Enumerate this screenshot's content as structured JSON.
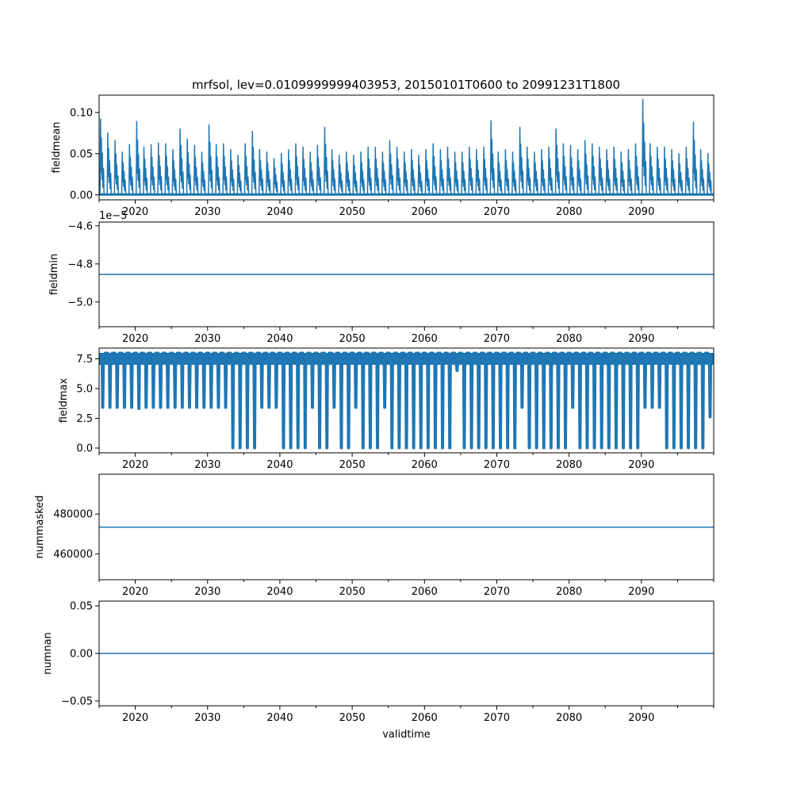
{
  "figure": {
    "title": "mrfsol, lev=0.0109999999403953, 20150101T0600 to 20991231T1800",
    "line_color": "#1f77b4"
  },
  "chart_data": [
    {
      "id": "fieldmean",
      "type": "line",
      "ylabel": "fieldmean",
      "xlabel": "",
      "xlim": [
        2015.0,
        2100.0
      ],
      "ylim": [
        -0.006,
        0.121
      ],
      "yticks": [
        0.0,
        0.05,
        0.1
      ],
      "ytick_labels": [
        "0.00",
        "0.05",
        "0.10"
      ],
      "offset_text": "",
      "xticks": [
        2020,
        2030,
        2040,
        2050,
        2060,
        2070,
        2080,
        2090
      ],
      "xtick_labels": [
        "2020",
        "2030",
        "2040",
        "2050",
        "2060",
        "2070",
        "2080",
        "2090"
      ],
      "series": [
        {
          "name": "fieldmean",
          "kind": "annual_peaks",
          "baseline": 0.0,
          "year_peaks": [
            [
              2015.2,
              0.092
            ],
            [
              2016.2,
              0.075
            ],
            [
              2017.2,
              0.066
            ],
            [
              2018.2,
              0.052
            ],
            [
              2019.2,
              0.061
            ],
            [
              2020.2,
              0.089
            ],
            [
              2021.2,
              0.058
            ],
            [
              2022.2,
              0.061
            ],
            [
              2023.2,
              0.063
            ],
            [
              2024.2,
              0.062
            ],
            [
              2025.2,
              0.055
            ],
            [
              2026.2,
              0.08
            ],
            [
              2027.2,
              0.068
            ],
            [
              2028.2,
              0.06
            ],
            [
              2029.2,
              0.052
            ],
            [
              2030.2,
              0.085
            ],
            [
              2031.2,
              0.061
            ],
            [
              2032.2,
              0.062
            ],
            [
              2033.2,
              0.055
            ],
            [
              2034.2,
              0.048
            ],
            [
              2035.2,
              0.062
            ],
            [
              2036.2,
              0.077
            ],
            [
              2037.2,
              0.055
            ],
            [
              2038.2,
              0.052
            ],
            [
              2039.2,
              0.044
            ],
            [
              2040.2,
              0.05
            ],
            [
              2041.2,
              0.055
            ],
            [
              2042.2,
              0.062
            ],
            [
              2043.2,
              0.058
            ],
            [
              2044.2,
              0.052
            ],
            [
              2045.2,
              0.06
            ],
            [
              2046.2,
              0.082
            ],
            [
              2047.2,
              0.055
            ],
            [
              2048.2,
              0.048
            ],
            [
              2049.2,
              0.052
            ],
            [
              2050.2,
              0.048
            ],
            [
              2051.2,
              0.052
            ],
            [
              2052.2,
              0.058
            ],
            [
              2053.2,
              0.058
            ],
            [
              2054.2,
              0.052
            ],
            [
              2055.2,
              0.066
            ],
            [
              2056.2,
              0.058
            ],
            [
              2057.2,
              0.052
            ],
            [
              2058.2,
              0.055
            ],
            [
              2059.2,
              0.048
            ],
            [
              2060.2,
              0.055
            ],
            [
              2061.2,
              0.062
            ],
            [
              2062.2,
              0.055
            ],
            [
              2063.2,
              0.058
            ],
            [
              2064.2,
              0.052
            ],
            [
              2065.2,
              0.052
            ],
            [
              2066.2,
              0.058
            ],
            [
              2067.2,
              0.055
            ],
            [
              2068.2,
              0.058
            ],
            [
              2069.2,
              0.09
            ],
            [
              2070.2,
              0.052
            ],
            [
              2071.2,
              0.055
            ],
            [
              2072.2,
              0.052
            ],
            [
              2073.2,
              0.082
            ],
            [
              2074.2,
              0.058
            ],
            [
              2075.2,
              0.052
            ],
            [
              2076.2,
              0.055
            ],
            [
              2077.2,
              0.058
            ],
            [
              2078.2,
              0.08
            ],
            [
              2079.2,
              0.062
            ],
            [
              2080.2,
              0.06
            ],
            [
              2081.2,
              0.055
            ],
            [
              2082.2,
              0.066
            ],
            [
              2083.2,
              0.062
            ],
            [
              2084.2,
              0.058
            ],
            [
              2085.2,
              0.055
            ],
            [
              2086.2,
              0.058
            ],
            [
              2087.2,
              0.052
            ],
            [
              2088.2,
              0.055
            ],
            [
              2089.2,
              0.062
            ],
            [
              2090.2,
              0.116
            ],
            [
              2091.2,
              0.062
            ],
            [
              2092.2,
              0.058
            ],
            [
              2093.2,
              0.058
            ],
            [
              2094.2,
              0.055
            ],
            [
              2095.2,
              0.05
            ],
            [
              2096.2,
              0.058
            ],
            [
              2097.2,
              0.088
            ],
            [
              2098.2,
              0.055
            ],
            [
              2099.2,
              0.05
            ]
          ]
        }
      ]
    },
    {
      "id": "fieldmin",
      "type": "line",
      "ylabel": "fieldmin",
      "xlabel": "",
      "xlim": [
        2015.0,
        2100.0
      ],
      "ylim": [
        -5.13,
        -4.58
      ],
      "yticks": [
        -5.0,
        -4.8,
        -4.6
      ],
      "ytick_labels": [
        "−5.0",
        "−4.8",
        "−4.6"
      ],
      "offset_text": "1e−5",
      "xticks": [
        2020,
        2030,
        2040,
        2050,
        2060,
        2070,
        2080,
        2090
      ],
      "xtick_labels": [
        "2020",
        "2030",
        "2040",
        "2050",
        "2060",
        "2070",
        "2080",
        "2090"
      ],
      "series": [
        {
          "name": "fieldmin",
          "kind": "constant",
          "value": -4.855
        }
      ]
    },
    {
      "id": "fieldmax",
      "type": "line",
      "ylabel": "fieldmax",
      "xlabel": "",
      "xlim": [
        2015.0,
        2100.0
      ],
      "ylim": [
        -0.4,
        8.4
      ],
      "yticks": [
        0.0,
        2.5,
        5.0,
        7.5
      ],
      "ytick_labels": [
        "0.0",
        "2.5",
        "5.0",
        "7.5"
      ],
      "offset_text": "",
      "xticks": [
        2020,
        2030,
        2040,
        2050,
        2060,
        2070,
        2080,
        2090
      ],
      "xtick_labels": [
        "2020",
        "2030",
        "2040",
        "2050",
        "2060",
        "2070",
        "2080",
        "2090"
      ],
      "series": [
        {
          "name": "fieldmax",
          "kind": "annual_dips",
          "upper": 8.0,
          "upper_low": 7.0,
          "year_dips": [
            [
              2015.5,
              3.4
            ],
            [
              2016.5,
              3.4
            ],
            [
              2017.5,
              3.4
            ],
            [
              2018.5,
              3.4
            ],
            [
              2019.5,
              3.4
            ],
            [
              2020.5,
              3.3
            ],
            [
              2021.5,
              3.4
            ],
            [
              2022.5,
              3.4
            ],
            [
              2023.5,
              3.4
            ],
            [
              2024.5,
              3.4
            ],
            [
              2025.5,
              3.4
            ],
            [
              2026.5,
              3.4
            ],
            [
              2027.5,
              3.4
            ],
            [
              2028.5,
              3.4
            ],
            [
              2029.5,
              3.4
            ],
            [
              2030.5,
              3.4
            ],
            [
              2031.5,
              3.4
            ],
            [
              2032.5,
              3.4
            ],
            [
              2033.5,
              0.0
            ],
            [
              2034.5,
              0.0
            ],
            [
              2035.5,
              0.0
            ],
            [
              2036.5,
              0.0
            ],
            [
              2037.5,
              3.4
            ],
            [
              2038.5,
              3.4
            ],
            [
              2039.5,
              3.4
            ],
            [
              2040.5,
              0.0
            ],
            [
              2041.5,
              0.0
            ],
            [
              2042.5,
              0.0
            ],
            [
              2043.5,
              0.0
            ],
            [
              2044.5,
              3.4
            ],
            [
              2045.5,
              0.0
            ],
            [
              2046.5,
              0.0
            ],
            [
              2047.5,
              3.4
            ],
            [
              2048.5,
              0.0
            ],
            [
              2049.5,
              0.0
            ],
            [
              2050.5,
              3.4
            ],
            [
              2051.5,
              0.0
            ],
            [
              2052.5,
              0.0
            ],
            [
              2053.5,
              0.0
            ],
            [
              2054.5,
              3.4
            ],
            [
              2055.5,
              0.0
            ],
            [
              2056.5,
              0.0
            ],
            [
              2057.5,
              0.0
            ],
            [
              2058.5,
              0.0
            ],
            [
              2059.5,
              0.0
            ],
            [
              2060.5,
              0.0
            ],
            [
              2061.5,
              0.0
            ],
            [
              2062.5,
              0.0
            ],
            [
              2063.5,
              0.0
            ],
            [
              2064.5,
              6.5
            ],
            [
              2065.5,
              0.0
            ],
            [
              2066.5,
              0.0
            ],
            [
              2067.5,
              0.0
            ],
            [
              2068.5,
              0.0
            ],
            [
              2069.5,
              0.0
            ],
            [
              2070.5,
              0.0
            ],
            [
              2071.5,
              0.0
            ],
            [
              2072.5,
              0.0
            ],
            [
              2073.5,
              3.4
            ],
            [
              2074.5,
              0.0
            ],
            [
              2075.5,
              0.0
            ],
            [
              2076.5,
              0.0
            ],
            [
              2077.5,
              0.0
            ],
            [
              2078.5,
              0.0
            ],
            [
              2079.5,
              0.0
            ],
            [
              2080.5,
              3.4
            ],
            [
              2081.5,
              0.0
            ],
            [
              2082.5,
              0.0
            ],
            [
              2083.5,
              0.0
            ],
            [
              2084.5,
              0.0
            ],
            [
              2085.5,
              0.0
            ],
            [
              2086.5,
              0.0
            ],
            [
              2087.5,
              0.0
            ],
            [
              2088.5,
              0.0
            ],
            [
              2089.5,
              0.0
            ],
            [
              2090.5,
              3.4
            ],
            [
              2091.5,
              3.4
            ],
            [
              2092.5,
              3.4
            ],
            [
              2093.5,
              0.0
            ],
            [
              2094.5,
              0.0
            ],
            [
              2095.5,
              0.0
            ],
            [
              2096.5,
              0.0
            ],
            [
              2097.5,
              0.0
            ],
            [
              2098.5,
              0.0
            ],
            [
              2099.5,
              2.6
            ]
          ]
        }
      ]
    },
    {
      "id": "nummasked",
      "type": "line",
      "ylabel": "nummasked",
      "xlabel": "",
      "xlim": [
        2015.0,
        2100.0
      ],
      "ylim": [
        447000,
        500000
      ],
      "yticks": [
        460000,
        480000
      ],
      "ytick_labels": [
        "460000",
        "480000"
      ],
      "offset_text": "",
      "xticks": [
        2020,
        2030,
        2040,
        2050,
        2060,
        2070,
        2080,
        2090
      ],
      "xtick_labels": [
        "2020",
        "2030",
        "2040",
        "2050",
        "2060",
        "2070",
        "2080",
        "2090"
      ],
      "series": [
        {
          "name": "nummasked",
          "kind": "constant",
          "value": 473400
        }
      ]
    },
    {
      "id": "numnan",
      "type": "line",
      "ylabel": "numnan",
      "xlabel": "validtime",
      "xlim": [
        2015.0,
        2100.0
      ],
      "ylim": [
        -0.055,
        0.055
      ],
      "yticks": [
        -0.05,
        0.0,
        0.05
      ],
      "ytick_labels": [
        "−0.05",
        "0.00",
        "0.05"
      ],
      "offset_text": "",
      "xticks": [
        2020,
        2030,
        2040,
        2050,
        2060,
        2070,
        2080,
        2090
      ],
      "xtick_labels": [
        "2020",
        "2030",
        "2040",
        "2050",
        "2060",
        "2070",
        "2080",
        "2090"
      ],
      "series": [
        {
          "name": "numnan",
          "kind": "constant",
          "value": 0.0
        }
      ]
    }
  ]
}
